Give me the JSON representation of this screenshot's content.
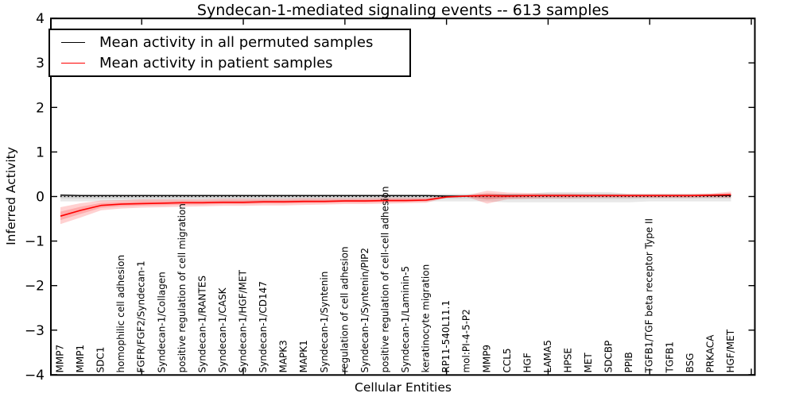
{
  "chart_data": {
    "type": "line",
    "title": "Syndecan-1-mediated signaling events -- 613 samples",
    "xlabel": "Cellular Entities",
    "ylabel": "Inferred Activity",
    "ylim": [
      -4,
      4
    ],
    "yticks": [
      -4,
      -3,
      -2,
      -1,
      0,
      1,
      2,
      3,
      4
    ],
    "grid": false,
    "legend_position": "upper left",
    "zero_reference_line": 0,
    "categories": [
      "MMP7",
      "MMP1",
      "SDC1",
      "homophilic cell adhesion",
      "FGFR/FGF2/Syndecan-1",
      "Syndecan-1/Collagen",
      "positive regulation of cell migration",
      "Syndecan-1/RANTES",
      "Syndecan-1/CASK",
      "Syndecan-1/HGF/MET",
      "Syndecan-1/CD147",
      "MAPK3",
      "MAPK1",
      "Syndecan-1/Syntenin",
      "regulation of cell adhesion",
      "Syndecan-1/Syntenin/PIP2",
      "positive regulation of cell-cell adhesion",
      "Syndecan-1/Laminin-5",
      "keratinocyte migration",
      "RP11-540L11.1",
      "mol:PI-4-5-P2",
      "MMP9",
      "CCL5",
      "HGF",
      "LAMA5",
      "HPSE",
      "MET",
      "SDCBP",
      "PPIB",
      "TGFB1/TGF beta receptor Type II",
      "TGFB1",
      "BSG",
      "PRKACA",
      "HGF/MET"
    ],
    "legend": [
      {
        "label": "Mean activity in all permuted samples",
        "color": "#000000"
      },
      {
        "label": "Mean activity in patient samples",
        "color": "#ff0000"
      }
    ],
    "series": [
      {
        "name": "Mean activity in all permuted samples",
        "color": "#000000",
        "line_width": 1.3,
        "values": [
          0.03,
          0.02,
          0.02,
          0.02,
          0.02,
          0.02,
          0.02,
          0.02,
          0.02,
          0.02,
          0.02,
          0.02,
          0.02,
          0.02,
          0.02,
          0.02,
          0.02,
          0.02,
          0.02,
          0.01,
          0.01,
          0.02,
          0.02,
          0.02,
          0.02,
          0.02,
          0.02,
          0.02,
          0.02,
          0.02,
          0.02,
          0.02,
          0.02,
          0.02
        ],
        "band_lo": [
          -0.11,
          -0.11,
          -0.11,
          -0.11,
          -0.11,
          -0.11,
          -0.11,
          -0.11,
          -0.11,
          -0.11,
          -0.11,
          -0.11,
          -0.11,
          -0.11,
          -0.11,
          -0.11,
          -0.11,
          -0.11,
          -0.11,
          -0.11,
          -0.11,
          -0.11,
          -0.13,
          -0.13,
          -0.13,
          -0.13,
          -0.13,
          -0.13,
          -0.13,
          -0.11,
          -0.11,
          -0.11,
          -0.11,
          -0.11
        ],
        "band_hi": [
          0.06,
          0.06,
          0.06,
          0.06,
          0.06,
          0.06,
          0.06,
          0.06,
          0.06,
          0.06,
          0.06,
          0.06,
          0.06,
          0.06,
          0.06,
          0.06,
          0.06,
          0.06,
          0.06,
          0.06,
          0.06,
          0.06,
          0.06,
          0.06,
          0.1,
          0.1,
          0.1,
          0.1,
          0.06,
          0.06,
          0.06,
          0.06,
          0.06,
          0.06
        ],
        "band_color": "rgba(0,0,0,0.09)"
      },
      {
        "name": "Mean activity in patient samples",
        "color": "#ff0000",
        "line_width": 1.6,
        "values": [
          -0.44,
          -0.31,
          -0.2,
          -0.17,
          -0.16,
          -0.15,
          -0.14,
          -0.14,
          -0.13,
          -0.13,
          -0.12,
          -0.12,
          -0.11,
          -0.11,
          -0.1,
          -0.1,
          -0.09,
          -0.09,
          -0.08,
          -0.01,
          0.01,
          0.02,
          0.01,
          0.02,
          0.02,
          0.02,
          0.02,
          0.02,
          0.02,
          0.02,
          0.02,
          0.02,
          0.03,
          0.04
        ],
        "band_lo": [
          -0.62,
          -0.47,
          -0.31,
          -0.27,
          -0.25,
          -0.24,
          -0.23,
          -0.22,
          -0.21,
          -0.21,
          -0.2,
          -0.2,
          -0.19,
          -0.18,
          -0.17,
          -0.17,
          -0.16,
          -0.15,
          -0.14,
          -0.03,
          -0.01,
          -0.16,
          -0.06,
          -0.05,
          -0.04,
          -0.04,
          -0.03,
          -0.03,
          -0.03,
          -0.03,
          -0.03,
          -0.03,
          -0.02,
          -0.03
        ],
        "band_hi": [
          -0.24,
          -0.15,
          -0.09,
          -0.08,
          -0.06,
          -0.06,
          -0.06,
          -0.06,
          -0.05,
          -0.05,
          -0.05,
          -0.05,
          -0.04,
          -0.04,
          -0.04,
          -0.04,
          -0.03,
          -0.03,
          -0.03,
          0.01,
          0.03,
          0.13,
          0.09,
          0.08,
          0.07,
          0.07,
          0.06,
          0.06,
          0.06,
          0.06,
          0.06,
          0.06,
          0.07,
          0.11
        ],
        "band_color": "rgba(255,0,0,0.18)"
      }
    ]
  }
}
